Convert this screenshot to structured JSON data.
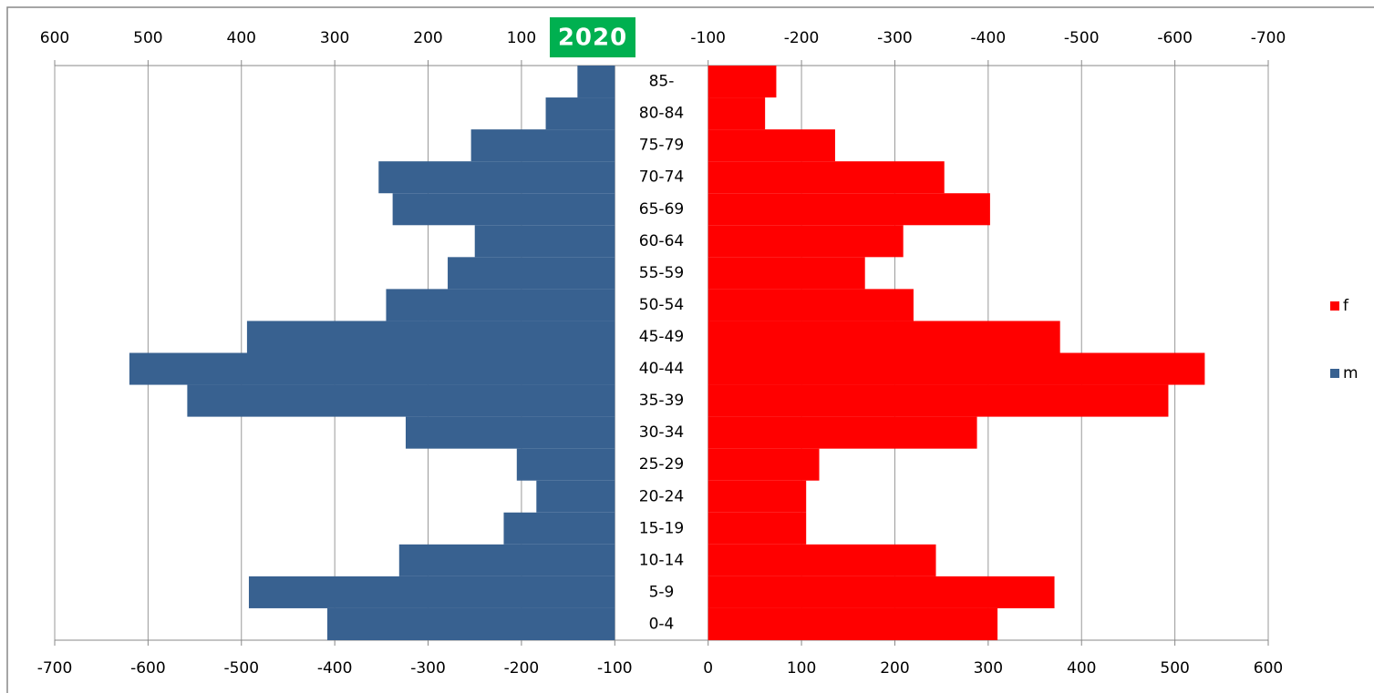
{
  "chart_data": {
    "type": "pyramid",
    "title": "2020",
    "categories": [
      "0-4",
      "5-9",
      "10-14",
      "15-19",
      "20-24",
      "25-29",
      "30-34",
      "35-39",
      "40-44",
      "45-49",
      "50-54",
      "55-59",
      "60-64",
      "65-69",
      "70-74",
      "75-79",
      "80-84",
      "85-"
    ],
    "series": [
      {
        "name": "f",
        "color": "#ff0000",
        "axis": "x",
        "values": [
          310,
          371,
          244,
          105,
          105,
          119,
          288,
          493,
          532,
          377,
          220,
          168,
          209,
          302,
          253,
          136,
          61,
          73
        ]
      },
      {
        "name": "m",
        "color": "#386190",
        "axis": "x2",
        "values": [
          308,
          392,
          231,
          119,
          84,
          105,
          224,
          458,
          520,
          394,
          245,
          179,
          150,
          238,
          253,
          154,
          74,
          40
        ]
      }
    ],
    "xlim": [
      -700,
      600
    ],
    "xticks": [
      -700,
      -600,
      -500,
      -400,
      -300,
      -200,
      -100,
      0,
      100,
      200,
      300,
      400,
      500,
      600
    ],
    "x2lim": [
      600,
      -700
    ],
    "x2ticks": [
      600,
      500,
      400,
      300,
      200,
      100,
      -100,
      -200,
      -300,
      -400,
      -500,
      -600,
      -700
    ],
    "grid": true,
    "legend": "right"
  }
}
